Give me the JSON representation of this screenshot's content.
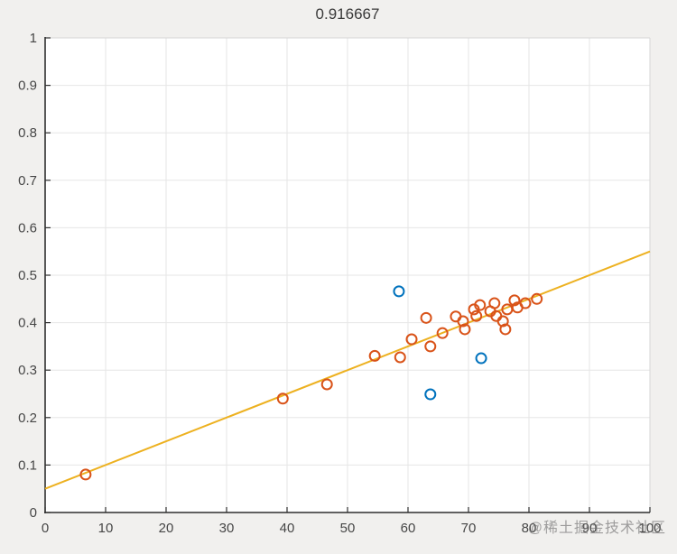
{
  "watermark": "@稀土掘金技术社区",
  "chart_data": {
    "type": "scatter",
    "title": "0.916667",
    "xlabel": "",
    "ylabel": "",
    "xlim": [
      0,
      100
    ],
    "ylim": [
      0,
      1
    ],
    "grid": true,
    "legend": null,
    "x_ticks": [
      0,
      10,
      20,
      30,
      40,
      50,
      60,
      70,
      80,
      90,
      100
    ],
    "x_tick_labels": [
      "0",
      "10",
      "20",
      "30",
      "40",
      "50",
      "60",
      "70",
      "80",
      "90",
      "100"
    ],
    "y_ticks": [
      0,
      0.1,
      0.2,
      0.3,
      0.4,
      0.5,
      0.6,
      0.7,
      0.8,
      0.9,
      1
    ],
    "y_tick_labels": [
      "0",
      "0.1",
      "0.2",
      "0.3",
      "0.4",
      "0.5",
      "0.6",
      "0.7",
      "0.8",
      "0.9",
      "1"
    ],
    "colors": {
      "orange_marker": "#D95319",
      "blue_marker": "#0072BD",
      "fit_line": "#EDB120",
      "grid": "#e6e6e6",
      "box_light": "#d6d6d6",
      "axis": "#2f2f2f",
      "tick_label": "#464646",
      "plot_background": "#ffffff"
    },
    "series": [
      {
        "name": "fit-line",
        "type": "line",
        "color": "#EDB120",
        "points": [
          [
            0,
            0.05
          ],
          [
            100,
            0.55
          ]
        ]
      },
      {
        "name": "scatter-orange",
        "type": "scatter",
        "color": "#D95319",
        "points": [
          [
            6.7,
            0.08
          ],
          [
            39.3,
            0.24
          ],
          [
            46.6,
            0.27
          ],
          [
            54.5,
            0.33
          ],
          [
            58.7,
            0.327
          ],
          [
            60.6,
            0.365
          ],
          [
            63.0,
            0.41
          ],
          [
            63.7,
            0.35
          ],
          [
            65.7,
            0.378
          ],
          [
            67.9,
            0.413
          ],
          [
            69.1,
            0.403
          ],
          [
            69.4,
            0.386
          ],
          [
            70.9,
            0.428
          ],
          [
            71.3,
            0.414
          ],
          [
            71.9,
            0.437
          ],
          [
            73.6,
            0.424
          ],
          [
            74.3,
            0.441
          ],
          [
            74.6,
            0.414
          ],
          [
            75.7,
            0.403
          ],
          [
            76.1,
            0.386
          ],
          [
            76.4,
            0.428
          ],
          [
            77.6,
            0.447
          ],
          [
            78.1,
            0.432
          ],
          [
            79.4,
            0.441
          ],
          [
            81.3,
            0.45
          ]
        ]
      },
      {
        "name": "scatter-blue",
        "type": "scatter",
        "color": "#0072BD",
        "points": [
          [
            58.5,
            0.466
          ],
          [
            63.7,
            0.249
          ],
          [
            72.1,
            0.325
          ]
        ]
      }
    ]
  }
}
